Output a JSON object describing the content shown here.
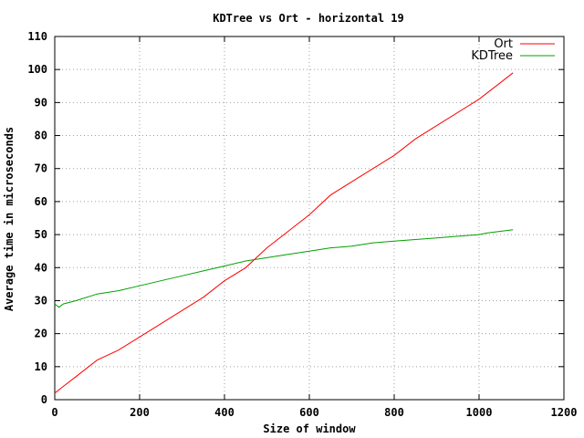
{
  "chart_data": {
    "type": "line",
    "title": "KDTree vs Ort - horizontal 19",
    "xlabel": "Size of window",
    "ylabel": "Average time in microseconds",
    "xlim": [
      0,
      1200
    ],
    "ylim": [
      0,
      110
    ],
    "xticks": [
      0,
      200,
      400,
      600,
      800,
      1000,
      1200
    ],
    "yticks": [
      0,
      10,
      20,
      30,
      40,
      50,
      60,
      70,
      80,
      90,
      100,
      110
    ],
    "grid": true,
    "legend_position": "top-right",
    "series": [
      {
        "name": "Ort",
        "color": "#ff0000",
        "x": [
          0,
          20,
          50,
          100,
          150,
          200,
          250,
          300,
          350,
          400,
          450,
          500,
          550,
          600,
          650,
          700,
          750,
          800,
          850,
          900,
          950,
          1000,
          1050,
          1080
        ],
        "y": [
          2,
          4,
          7,
          12,
          15,
          19,
          23,
          27,
          31,
          36,
          40,
          46,
          51,
          56,
          62,
          66,
          70,
          74,
          79,
          83,
          87,
          91,
          96,
          99
        ]
      },
      {
        "name": "KDTree",
        "color": "#00a000",
        "x": [
          0,
          10,
          20,
          50,
          100,
          150,
          200,
          250,
          300,
          350,
          400,
          450,
          500,
          550,
          600,
          650,
          700,
          750,
          800,
          850,
          900,
          950,
          1000,
          1020,
          1050,
          1080
        ],
        "y": [
          29,
          28,
          29,
          30,
          32,
          33,
          34.5,
          36,
          37.5,
          39,
          40.5,
          42,
          43,
          44,
          45,
          46,
          46.5,
          47.5,
          48,
          48.5,
          49,
          49.5,
          50,
          50.5,
          51,
          51.5
        ]
      }
    ]
  }
}
